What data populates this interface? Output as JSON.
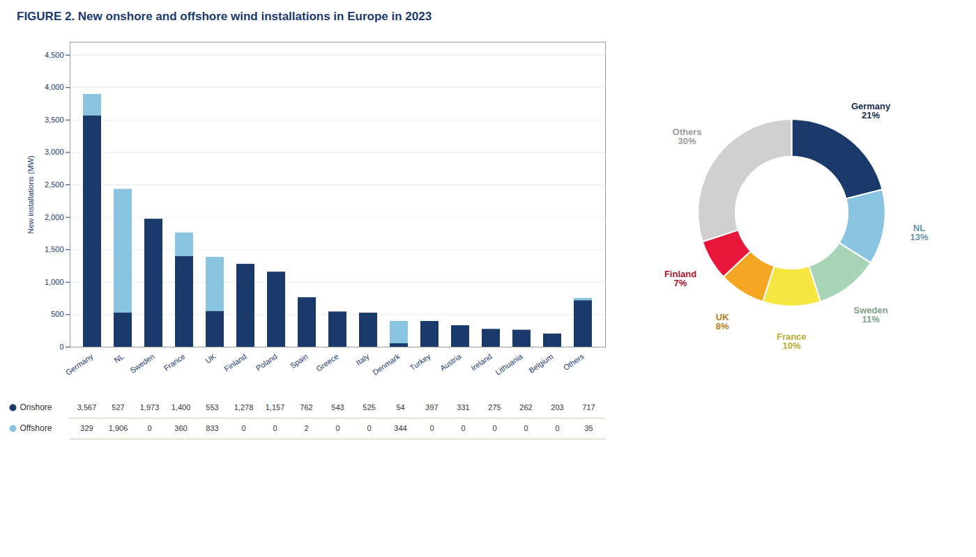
{
  "chart_data": [
    {
      "type": "bar",
      "title": "FIGURE 2. New onshore and offshore wind installations in Europe in 2023",
      "categories": [
        "Germany",
        "NL",
        "Sweden",
        "France",
        "UK",
        "Finland",
        "Poland",
        "Spain",
        "Greece",
        "Italy",
        "Denmark",
        "Turkey",
        "Austria",
        "Ireland",
        "Lithuania",
        "Belgium",
        "Others"
      ],
      "series": [
        {
          "name": "Onshore",
          "color": "#1a3a6b",
          "values": [
            3567,
            527,
            1973,
            1400,
            553,
            1278,
            1157,
            762,
            543,
            525,
            54,
            397,
            331,
            275,
            262,
            203,
            717
          ],
          "value_labels": [
            "3,567",
            "527",
            "1,973",
            "1,400",
            "553",
            "1,278",
            "1,157",
            "762",
            "543",
            "525",
            "54",
            "397",
            "331",
            "275",
            "262",
            "203",
            "717"
          ]
        },
        {
          "name": "Offshore",
          "color": "#89c4e1",
          "values": [
            329,
            1906,
            0,
            360,
            833,
            0,
            0,
            2,
            0,
            0,
            344,
            0,
            0,
            0,
            0,
            0,
            35
          ],
          "value_labels": [
            "329",
            "1,906",
            "0",
            "360",
            "833",
            "0",
            "0",
            "2",
            "0",
            "0",
            "344",
            "0",
            "0",
            "0",
            "0",
            "0",
            "35"
          ]
        }
      ],
      "stacked": true,
      "ylabel": "New installations (MW)",
      "ylim": [
        0,
        4700
      ],
      "yticks": [
        0,
        500,
        {
          "value": 1000,
          "label": "1,000"
        },
        {
          "value": 1500,
          "label": "1,500"
        },
        {
          "value": 2000,
          "label": "2,000"
        },
        {
          "value": 2500,
          "label": "2,500"
        },
        {
          "value": 3000,
          "label": "3,000"
        },
        {
          "value": 3500,
          "label": "3,500"
        },
        {
          "value": 4000,
          "label": "4,000"
        },
        {
          "value": 4500,
          "label": "4,500"
        }
      ],
      "grid": true,
      "data_labels": true
    },
    {
      "type": "pie",
      "categories": [
        "Germany",
        "NL",
        "Sweden",
        "France",
        "UK",
        "Finland",
        "Others"
      ],
      "values": [
        21,
        13,
        11,
        10,
        8,
        7,
        30
      ],
      "value_labels": [
        "21%",
        "13%",
        "11%",
        "10%",
        "8%",
        "7%",
        "30%"
      ],
      "colors": [
        "#1a3a6b",
        "#89c4e1",
        "#a8d5b5",
        "#f5e642",
        "#f5a623",
        "#e8173a",
        "#d0d0d0"
      ],
      "data_labels": true
    }
  ]
}
